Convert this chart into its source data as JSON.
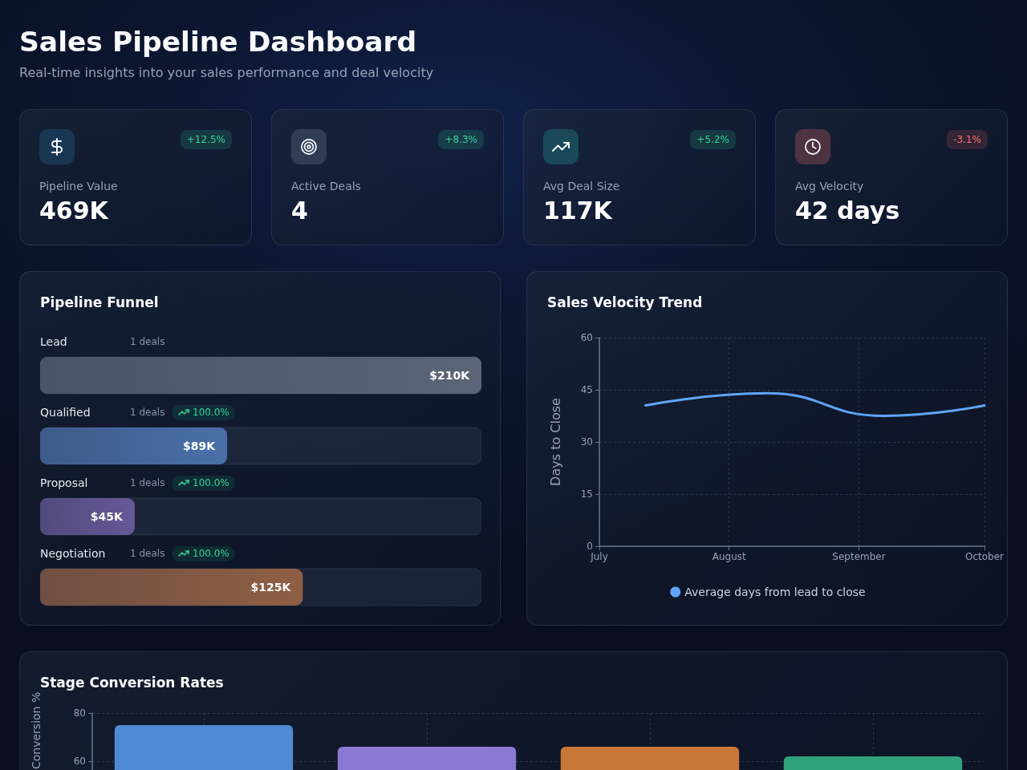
{
  "chart_data": [
    {
      "type": "other",
      "title": "Sales Pipeline Dashboard",
      "subtitle": "Real-time insights into your sales performance and deal velocity",
      "categories": [
        "Pipeline Value",
        "Active Deals",
        "Avg Deal Size",
        "Avg Velocity"
      ],
      "value_labels": [
        "469K",
        "4",
        "117K",
        "42 days"
      ],
      "annotations": [
        "+12.5%",
        "+8.3%",
        "+5.2%",
        "-3.1%"
      ]
    },
    {
      "type": "bar",
      "orientation": "horizontal",
      "title": "Pipeline Funnel",
      "categories": [
        "Lead",
        "Qualified",
        "Proposal",
        "Negotiation"
      ],
      "values": [
        210,
        89,
        45,
        125
      ],
      "value_labels": [
        "$210K",
        "$89K",
        "$45K",
        "$125K"
      ],
      "colors": [
        "#5c6578",
        "#4a6fa8",
        "#665897",
        "#8f5f45"
      ],
      "annotations": [
        "1 deals",
        "1 deals",
        "100.0%",
        "1 deals",
        "100.0%",
        "1 deals",
        "100.0%"
      ]
    },
    {
      "type": "line",
      "title": "Sales Velocity Trend",
      "ylabel": "Days to Close",
      "x": [
        "--07-12",
        "--08-10",
        "--09-07",
        "--10-01"
      ],
      "series": [
        {
          "name": "Average days from lead to close",
          "color": "#60a5fa",
          "values": [
            40.5,
            44,
            37.5,
            40.5
          ]
        }
      ],
      "xlim": [
        "--07-01",
        "--10-01"
      ],
      "xticks": [
        {
          "value": "--07-01",
          "label": "July"
        },
        {
          "value": "--08-01",
          "label": "August"
        },
        {
          "value": "--09-01",
          "label": "September"
        },
        {
          "value": "--10-01",
          "label": "October"
        }
      ],
      "ylim": [
        0,
        60
      ],
      "yticks": [
        0,
        15,
        30,
        45,
        60
      ],
      "grid": true,
      "legend": "bottom"
    },
    {
      "type": "bar",
      "title": "Stage Conversion Rates",
      "ylabel": "Conversion %",
      "categories": [
        null,
        null,
        null,
        null
      ],
      "values": [
        75,
        66,
        66,
        62
      ],
      "colors": [
        "#4f8ad4",
        "#8b78d2",
        "#c97739",
        "#2fa27c"
      ],
      "ylim": [
        0,
        80
      ],
      "yticks": [
        60,
        80
      ],
      "grid": true
    }
  ]
}
